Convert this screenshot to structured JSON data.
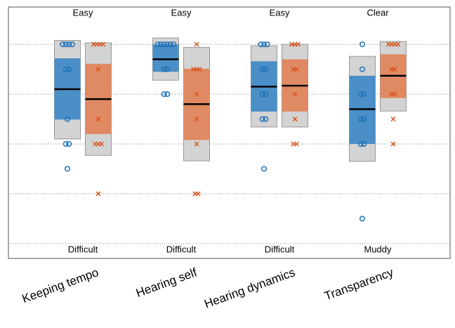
{
  "chart_data": {
    "type": "box",
    "categories": [
      "Keeping tempo",
      "Hearing self",
      "Hearing dynamics",
      "Transparency"
    ],
    "top_labels": [
      "Easy",
      "Easy",
      "Easy",
      "Clear"
    ],
    "bottom_labels": [
      "Difficult",
      "Difficult",
      "Difficult",
      "Muddy"
    ],
    "ylim": [
      0.7,
      5.75
    ],
    "yticks": [
      1,
      2,
      3,
      4,
      5
    ],
    "grid": true,
    "series": [
      {
        "color": "#1f72b8",
        "box_color": "#4a8fc7",
        "marker": "circle",
        "whisker_low": [
          3.1,
          4.28,
          3.34,
          2.65
        ],
        "q1": [
          3.49,
          4.45,
          3.65,
          3.0
        ],
        "median": [
          4.1,
          4.7,
          4.15,
          3.7
        ],
        "q3": [
          4.72,
          5.0,
          4.66,
          4.37
        ],
        "whisker_high": [
          5.08,
          5.13,
          4.97,
          4.76
        ],
        "points": [
          [
            5,
            5,
            5,
            5,
            4.5,
            4.5,
            3.5,
            3,
            3,
            2.5
          ],
          [
            5,
            5,
            5,
            5,
            5,
            5,
            4.5,
            4.5,
            4,
            4
          ],
          [
            5,
            5,
            5,
            4.5,
            4.5,
            4,
            4,
            3.5,
            3.5,
            2.5
          ],
          [
            5,
            4.5,
            4,
            4,
            3.5,
            3.5,
            3,
            3,
            1.5
          ]
        ]
      },
      {
        "color": "#d95319",
        "box_color": "#e08a63",
        "marker": "x",
        "whisker_low": [
          2.77,
          2.66,
          3.34,
          3.66
        ],
        "q1": [
          3.2,
          3.08,
          3.65,
          3.92
        ],
        "median": [
          3.9,
          3.8,
          4.17,
          4.37
        ],
        "q3": [
          4.61,
          4.51,
          4.7,
          4.8
        ],
        "whisker_high": [
          5.03,
          4.94,
          5.0,
          5.06
        ],
        "points": [
          [
            5,
            5,
            5,
            5,
            4.5,
            3.5,
            3,
            3,
            3,
            2
          ],
          [
            5,
            4.5,
            4.5,
            4.5,
            4,
            3.5,
            3,
            2,
            2
          ],
          [
            5,
            5,
            5,
            4.5,
            4.5,
            4,
            3.5,
            3,
            3
          ],
          [
            5,
            5,
            5,
            5,
            4.5,
            4.5,
            4,
            4,
            3.5,
            3
          ]
        ]
      }
    ]
  }
}
